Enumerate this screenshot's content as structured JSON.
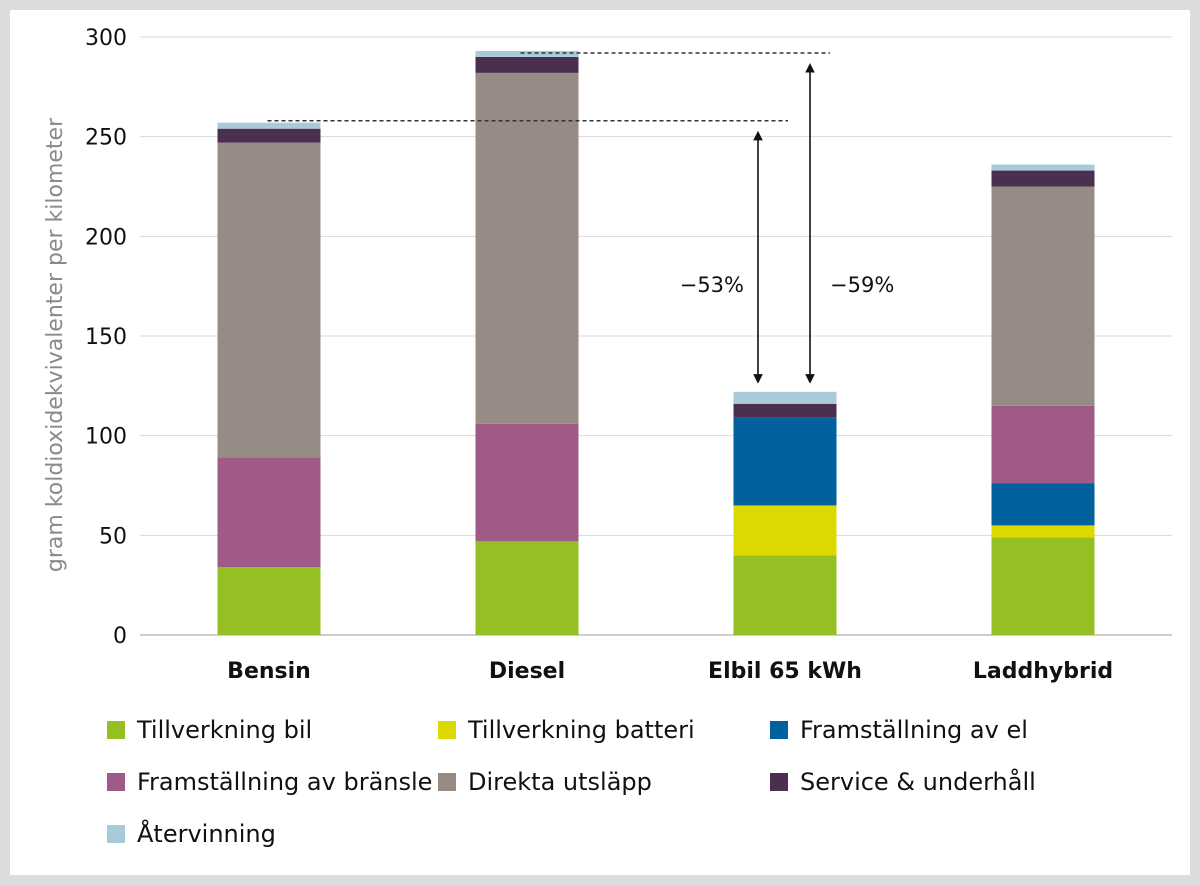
{
  "chart_data": {
    "type": "bar",
    "stacked": true,
    "ylabel": "gram koldioxidekvivalenter per kilometer",
    "xlabel": "",
    "ylim": [
      0,
      300
    ],
    "yticks": [
      0,
      50,
      100,
      150,
      200,
      250,
      300
    ],
    "grid": true,
    "legend_position": "bottom",
    "categories": [
      "Bensin",
      "Diesel",
      "Elbil 65 kWh",
      "Laddhybrid"
    ],
    "series": [
      {
        "name": "Tillverkning bil",
        "color": "#95c023",
        "values": [
          34,
          47,
          40,
          49
        ]
      },
      {
        "name": "Tillverkning batteri",
        "color": "#dcd900",
        "values": [
          0,
          0,
          25,
          6
        ]
      },
      {
        "name": "Framställning av el",
        "color": "#00619d",
        "values": [
          0,
          0,
          44,
          21
        ]
      },
      {
        "name": "Framställning av bränsle",
        "color": "#a05a88",
        "values": [
          55,
          59,
          0,
          39
        ]
      },
      {
        "name": "Direkta utsläpp",
        "color": "#978b85",
        "values": [
          158,
          176,
          0,
          110
        ]
      },
      {
        "name": "Service & underhåll",
        "color": "#4b2f4f",
        "values": [
          7,
          8,
          7,
          8
        ]
      },
      {
        "name": "Återvinning",
        "color": "#a9cad9",
        "values": [
          3,
          3,
          6,
          3
        ]
      }
    ],
    "annotations": [
      {
        "text": "−53%",
        "from_category": "Bensin",
        "from_value": 258,
        "to_value": 122
      },
      {
        "text": "−59%",
        "from_category": "Diesel",
        "from_value": 292,
        "to_value": 122
      }
    ]
  }
}
